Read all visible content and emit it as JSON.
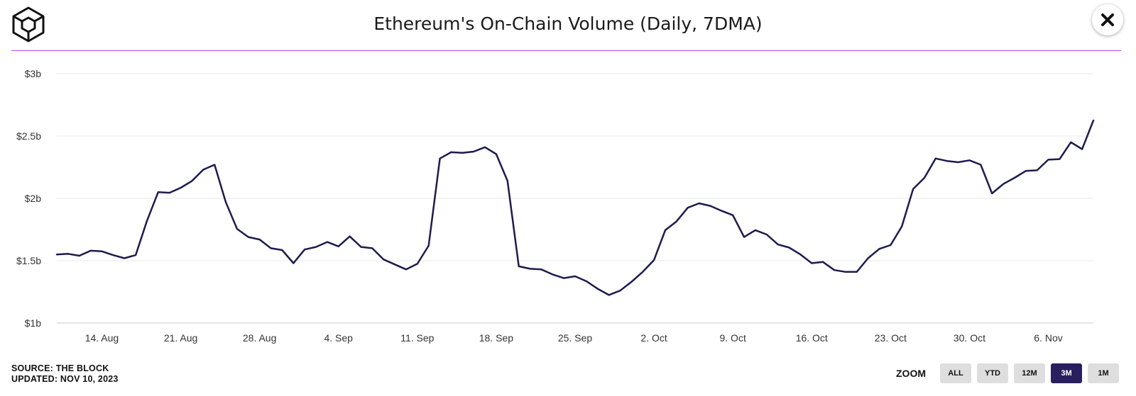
{
  "header": {
    "title": "Ethereum's On-Chain Volume (Daily, 7DMA)"
  },
  "colors": {
    "accent": "#b148e8",
    "line": "#1f1b4d",
    "active_zoom": "#2a1f5e"
  },
  "icons": {
    "logo": "the-block-cube-logo-icon",
    "close": "close-icon"
  },
  "footer": {
    "source": "SOURCE: THE BLOCK",
    "updated": "UPDATED: NOV 10, 2023"
  },
  "zoom": {
    "label": "ZOOM",
    "buttons": [
      "ALL",
      "YTD",
      "12M",
      "3M",
      "1M"
    ],
    "active": "3M"
  },
  "chart_data": {
    "type": "line",
    "title": "Ethereum's On-Chain Volume (Daily, 7DMA)",
    "xlabel": "",
    "ylabel": "",
    "grid": true,
    "legend": "none",
    "x_range": [
      "2023-08-10",
      "2023-11-10"
    ],
    "ylim": [
      1,
      3
    ],
    "y_unit": "billion USD",
    "y_ticks": [
      1,
      1.5,
      2,
      2.5,
      3
    ],
    "y_tick_labels": [
      "$1b",
      "$1.5b",
      "$2b",
      "$2.5b",
      "$3b"
    ],
    "x_ticks": [
      "2023-08-14",
      "2023-08-21",
      "2023-08-28",
      "2023-09-04",
      "2023-09-11",
      "2023-09-18",
      "2023-09-25",
      "2023-10-02",
      "2023-10-09",
      "2023-10-16",
      "2023-10-23",
      "2023-10-30",
      "2023-11-06"
    ],
    "x_tick_labels": [
      "14. Aug",
      "21. Aug",
      "28. Aug",
      "4. Sep",
      "11. Sep",
      "18. Sep",
      "25. Sep",
      "2. Oct",
      "9. Oct",
      "16. Oct",
      "23. Oct",
      "30. Oct",
      "6. Nov"
    ],
    "series": [
      {
        "dates": [
          "2023-08-10",
          "2023-08-11",
          "2023-08-12",
          "2023-08-13",
          "2023-08-14",
          "2023-08-15",
          "2023-08-16",
          "2023-08-17",
          "2023-08-18",
          "2023-08-19",
          "2023-08-20",
          "2023-08-21",
          "2023-08-22",
          "2023-08-23",
          "2023-08-24",
          "2023-08-25",
          "2023-08-26",
          "2023-08-27",
          "2023-08-28",
          "2023-08-29",
          "2023-08-30",
          "2023-08-31",
          "2023-09-01",
          "2023-09-02",
          "2023-09-03",
          "2023-09-04",
          "2023-09-05",
          "2023-09-06",
          "2023-09-07",
          "2023-09-08",
          "2023-09-09",
          "2023-09-10",
          "2023-09-11",
          "2023-09-12",
          "2023-09-13",
          "2023-09-14",
          "2023-09-15",
          "2023-09-16",
          "2023-09-17",
          "2023-09-18",
          "2023-09-19",
          "2023-09-20",
          "2023-09-21",
          "2023-09-22",
          "2023-09-23",
          "2023-09-24",
          "2023-09-25",
          "2023-09-26",
          "2023-09-27",
          "2023-09-28",
          "2023-09-29",
          "2023-09-30",
          "2023-10-01",
          "2023-10-02",
          "2023-10-03",
          "2023-10-04",
          "2023-10-05",
          "2023-10-06",
          "2023-10-07",
          "2023-10-08",
          "2023-10-09",
          "2023-10-10",
          "2023-10-11",
          "2023-10-12",
          "2023-10-13",
          "2023-10-14",
          "2023-10-15",
          "2023-10-16",
          "2023-10-17",
          "2023-10-18",
          "2023-10-19",
          "2023-10-20",
          "2023-10-21",
          "2023-10-22",
          "2023-10-23",
          "2023-10-24",
          "2023-10-25",
          "2023-10-26",
          "2023-10-27",
          "2023-10-28",
          "2023-10-29",
          "2023-10-30",
          "2023-10-31",
          "2023-11-01",
          "2023-11-02",
          "2023-11-03",
          "2023-11-04",
          "2023-11-05",
          "2023-11-06",
          "2023-11-07",
          "2023-11-08",
          "2023-11-09",
          "2023-11-10"
        ],
        "values": [
          1.55,
          1.555,
          1.54,
          1.58,
          1.575,
          1.545,
          1.52,
          1.545,
          1.82,
          2.05,
          2.045,
          2.085,
          2.14,
          2.23,
          2.27,
          1.97,
          1.755,
          1.69,
          1.67,
          1.6,
          1.585,
          1.48,
          1.59,
          1.61,
          1.65,
          1.615,
          1.695,
          1.61,
          1.6,
          1.51,
          1.47,
          1.43,
          1.475,
          1.62,
          2.32,
          2.37,
          2.365,
          2.375,
          2.41,
          2.355,
          2.14,
          1.455,
          1.435,
          1.43,
          1.39,
          1.36,
          1.375,
          1.335,
          1.275,
          1.225,
          1.26,
          1.33,
          1.41,
          1.505,
          1.745,
          1.815,
          1.925,
          1.96,
          1.94,
          1.9,
          1.865,
          1.69,
          1.745,
          1.71,
          1.63,
          1.605,
          1.55,
          1.48,
          1.49,
          1.425,
          1.41,
          1.41,
          1.52,
          1.595,
          1.625,
          1.775,
          2.075,
          2.165,
          2.32,
          2.3,
          2.29,
          2.305,
          2.27,
          2.04,
          2.115,
          2.165,
          2.22,
          2.225,
          2.31,
          2.315,
          2.45,
          2.395,
          2.625
        ]
      }
    ]
  }
}
